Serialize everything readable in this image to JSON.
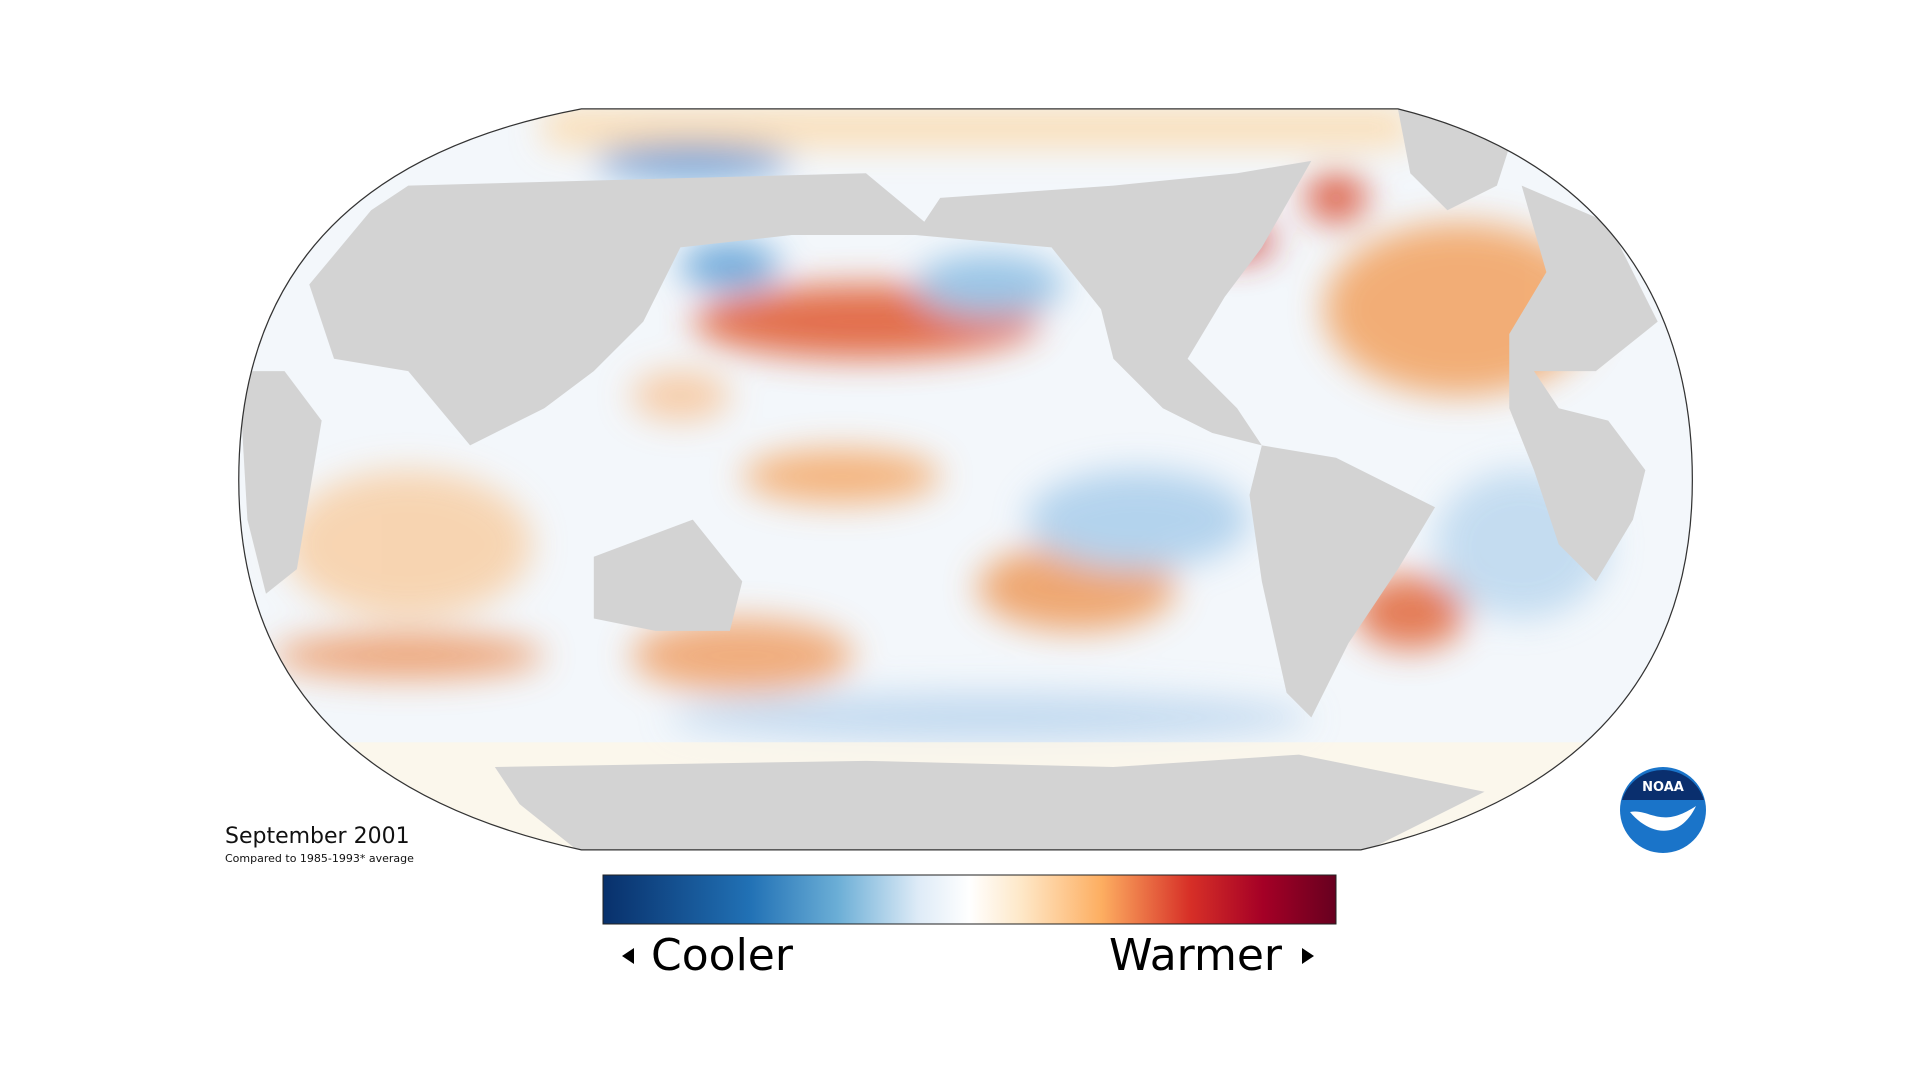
{
  "map": {
    "date": "September 2001",
    "baseline": "Compared to 1985-1993* average",
    "legend": {
      "low": "Cooler",
      "high": "Warmer"
    },
    "logo": "NOAA"
  }
}
